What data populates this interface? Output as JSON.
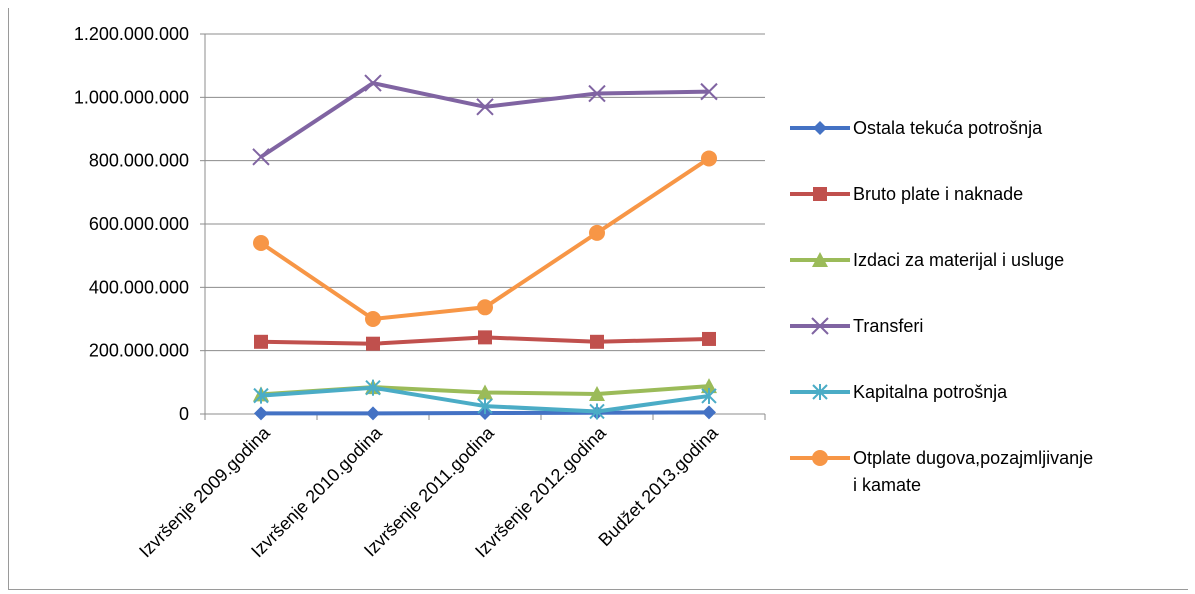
{
  "chart_data": {
    "type": "line",
    "title": "",
    "xlabel": "",
    "ylabel": "",
    "ylim": [
      0,
      1200000000
    ],
    "yticks": [
      0,
      200000000,
      400000000,
      600000000,
      800000000,
      1000000000,
      1200000000
    ],
    "ytick_labels": [
      "0",
      "200.000.000",
      "400.000.000",
      "600.000.000",
      "800.000.000",
      "1.000.000.000",
      "1.200.000.000"
    ],
    "grid": true,
    "legend_position": "right",
    "categories": [
      "Izvršenje 2009.godina",
      "Izvršenje 2010.godina",
      "Izvršenje 2011.godina",
      "Izvršenje 2012.godina",
      "Budžet 2013.godina"
    ],
    "series": [
      {
        "name": "Ostala tekuća potrošnja",
        "color": "#4472C4",
        "marker": "diamond",
        "values": [
          2000000,
          2000000,
          3000000,
          4000000,
          5000000
        ]
      },
      {
        "name": "Bruto plate i naknade",
        "color": "#C0504D",
        "marker": "square",
        "values": [
          228000000,
          222000000,
          242000000,
          228000000,
          237000000
        ]
      },
      {
        "name": "Izdaci za materijal i usluge",
        "color": "#9BBB59",
        "marker": "triangle",
        "values": [
          62000000,
          85000000,
          68000000,
          63000000,
          88000000
        ]
      },
      {
        "name": "Transferi",
        "color": "#8064A2",
        "marker": "x",
        "values": [
          812000000,
          1045000000,
          970000000,
          1012000000,
          1018000000
        ]
      },
      {
        "name": "Kapitalna potrošnja",
        "color": "#4BACC6",
        "marker": "star",
        "values": [
          58000000,
          83000000,
          25000000,
          8000000,
          57000000
        ]
      },
      {
        "name": "Otplate dugova,pozajmljivanje i kamate",
        "legend_lines": [
          "Otplate dugova,pozajmljivanje",
          "i kamate"
        ],
        "color": "#F79646",
        "marker": "circle",
        "values": [
          540000000,
          300000000,
          337000000,
          572000000,
          807000000
        ]
      }
    ]
  }
}
